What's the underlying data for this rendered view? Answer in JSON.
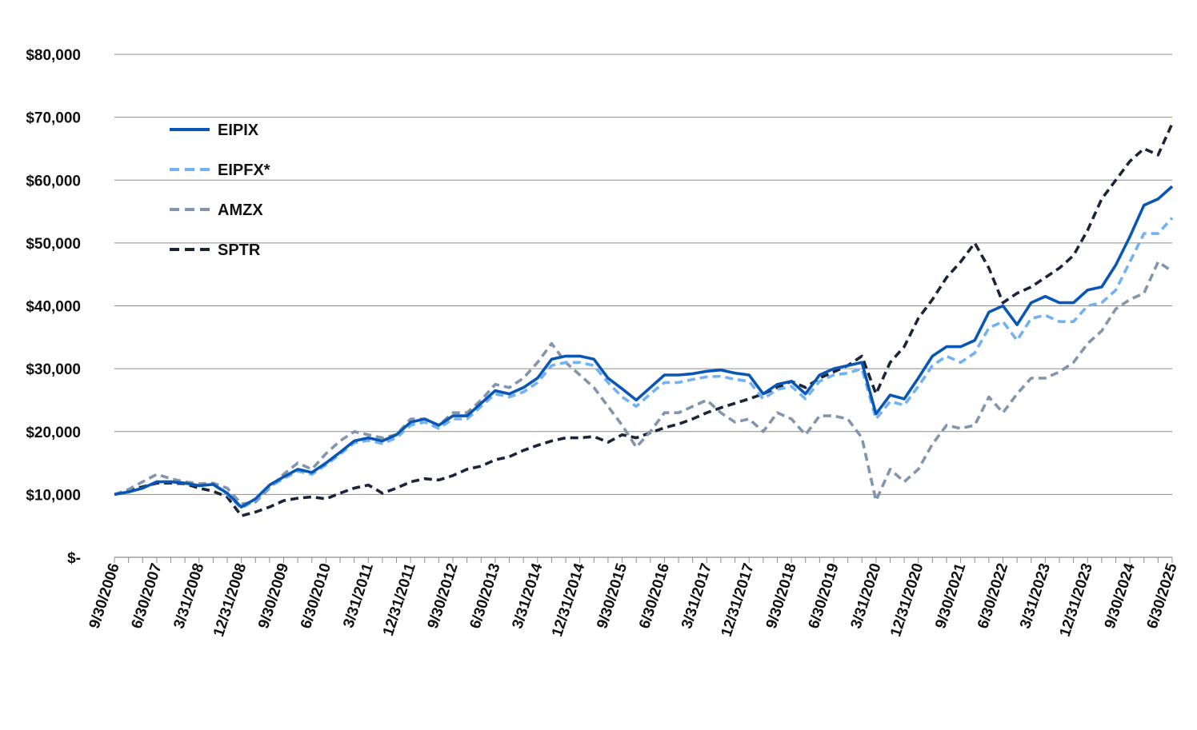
{
  "chart_data": {
    "type": "line",
    "title": "",
    "xlabel": "",
    "ylabel": "",
    "ylim": [
      0,
      80000
    ],
    "y_ticks": [
      {
        "value": 0,
        "label": "$-"
      },
      {
        "value": 10000,
        "label": "$10,000"
      },
      {
        "value": 20000,
        "label": "$20,000"
      },
      {
        "value": 30000,
        "label": "$30,000"
      },
      {
        "value": 40000,
        "label": "$40,000"
      },
      {
        "value": 50000,
        "label": "$50,000"
      },
      {
        "value": 60000,
        "label": "$60,000"
      },
      {
        "value": 70000,
        "label": "$70,000"
      },
      {
        "value": 80000,
        "label": "$80,000"
      }
    ],
    "x_tick_labels": [
      "9/30/2006",
      "6/30/2007",
      "3/31/2008",
      "12/31/2008",
      "9/30/2009",
      "6/30/2010",
      "3/31/2011",
      "12/31/2011",
      "9/30/2012",
      "6/30/2013",
      "3/31/2014",
      "12/31/2014",
      "9/30/2015",
      "6/30/2016",
      "3/31/2017",
      "12/31/2017",
      "9/30/2018",
      "6/30/2019",
      "3/31/2020",
      "12/31/2020",
      "9/30/2021",
      "6/30/2022",
      "3/31/2023",
      "12/31/2023",
      "9/30/2024",
      "6/30/2025"
    ],
    "grid": "horizontal",
    "legend": "upper-left",
    "colors": {
      "EIPIX": "#0a56b5",
      "EIPFX*": "#72b2f2",
      "AMZX": "#8196ad",
      "SPTR": "#1b2438"
    },
    "x_unit": "quarter-end date (2006-09-30 to 2025-06-30)",
    "x": [
      "2006-09-30",
      "2006-12-31",
      "2007-03-31",
      "2007-06-30",
      "2007-09-30",
      "2007-12-31",
      "2008-03-31",
      "2008-06-30",
      "2008-09-30",
      "2008-12-31",
      "2009-03-31",
      "2009-06-30",
      "2009-09-30",
      "2009-12-31",
      "2010-03-31",
      "2010-06-30",
      "2010-09-30",
      "2010-12-31",
      "2011-03-31",
      "2011-06-30",
      "2011-09-30",
      "2011-12-31",
      "2012-03-31",
      "2012-06-30",
      "2012-09-30",
      "2012-12-31",
      "2013-03-31",
      "2013-06-30",
      "2013-09-30",
      "2013-12-31",
      "2014-03-31",
      "2014-06-30",
      "2014-09-30",
      "2014-12-31",
      "2015-03-31",
      "2015-06-30",
      "2015-09-30",
      "2015-12-31",
      "2016-03-31",
      "2016-06-30",
      "2016-09-30",
      "2016-12-31",
      "2017-03-31",
      "2017-06-30",
      "2017-09-30",
      "2017-12-31",
      "2018-03-31",
      "2018-06-30",
      "2018-09-30",
      "2018-12-31",
      "2019-03-31",
      "2019-06-30",
      "2019-09-30",
      "2019-12-31",
      "2020-03-31",
      "2020-06-30",
      "2020-09-30",
      "2020-12-31",
      "2021-03-31",
      "2021-06-30",
      "2021-09-30",
      "2021-12-31",
      "2022-03-31",
      "2022-06-30",
      "2022-09-30",
      "2022-12-31",
      "2023-03-31",
      "2023-06-30",
      "2023-09-30",
      "2023-12-31",
      "2024-03-31",
      "2024-06-30",
      "2024-09-30",
      "2024-12-31",
      "2025-03-31",
      "2025-06-30"
    ],
    "series": [
      {
        "name": "EIPIX",
        "style": "solid",
        "values": [
          10000,
          10400,
          11000,
          12000,
          12000,
          11800,
          11400,
          11600,
          10200,
          8000,
          9300,
          11500,
          12800,
          14000,
          13500,
          15000,
          16700,
          18500,
          19000,
          18500,
          19500,
          21500,
          22000,
          21000,
          22500,
          22500,
          24500,
          26500,
          26000,
          27000,
          28500,
          31500,
          32000,
          32000,
          31500,
          28500,
          26800,
          25000,
          27000,
          29000,
          29000,
          29200,
          29600,
          29800,
          29300,
          29000,
          26000,
          27500,
          28000,
          26000,
          29000,
          30000,
          30500,
          31000,
          22800,
          25800,
          25200,
          28500,
          32000,
          33500,
          33500,
          34500,
          39000,
          40000,
          37000,
          40500,
          41500,
          40500,
          40500,
          42500,
          43000,
          46500,
          51000,
          56000,
          57000,
          59000
        ]
      },
      {
        "name": "EIPFX*",
        "style": "dashed",
        "values": [
          10000,
          10400,
          11000,
          12000,
          12000,
          11800,
          11400,
          11600,
          10000,
          7800,
          9100,
          11200,
          12500,
          13700,
          13200,
          14700,
          16400,
          18200,
          18600,
          18100,
          19000,
          21000,
          21500,
          20500,
          22000,
          22000,
          24000,
          26000,
          25500,
          26300,
          27800,
          30500,
          31000,
          31000,
          30500,
          27800,
          25500,
          24000,
          26000,
          27800,
          27800,
          28300,
          28700,
          28800,
          28300,
          28000,
          25200,
          26700,
          27200,
          25200,
          28000,
          29000,
          29300,
          30000,
          22000,
          24800,
          24200,
          27200,
          30500,
          32000,
          31000,
          32500,
          36500,
          37500,
          34500,
          38000,
          38500,
          37500,
          37500,
          40000,
          40500,
          42500,
          47000,
          51500,
          51500,
          54000
        ]
      },
      {
        "name": "AMZX",
        "style": "dashed",
        "values": [
          10000,
          10800,
          12000,
          13200,
          12500,
          12000,
          11700,
          11800,
          11000,
          8500,
          8800,
          11000,
          13200,
          15000,
          14000,
          16500,
          18500,
          20000,
          19500,
          19000,
          19500,
          22000,
          22000,
          21000,
          23000,
          23000,
          25000,
          27500,
          27000,
          28500,
          31000,
          34000,
          31000,
          29000,
          27000,
          24000,
          21000,
          17500,
          20000,
          23000,
          23000,
          24000,
          25000,
          23000,
          21500,
          22000,
          20000,
          23000,
          22000,
          19500,
          22500,
          22500,
          22000,
          19000,
          9000,
          14000,
          12000,
          14000,
          18000,
          21000,
          20500,
          21000,
          25500,
          23000,
          26000,
          28500,
          28500,
          29500,
          31000,
          34000,
          36000,
          39500,
          41000,
          42000,
          47000,
          45500
        ]
      },
      {
        "name": "SPTR",
        "style": "dashed",
        "values": [
          10000,
          10700,
          11200,
          11800,
          11800,
          11700,
          11000,
          10500,
          9600,
          6600,
          7200,
          8000,
          9000,
          9400,
          9600,
          9300,
          10200,
          11000,
          11500,
          10200,
          11000,
          12000,
          12500,
          12300,
          13000,
          14000,
          14500,
          15500,
          16000,
          17000,
          17800,
          18500,
          19000,
          19000,
          19200,
          18300,
          19500,
          19000,
          19800,
          20600,
          21200,
          22000,
          23000,
          23800,
          24500,
          25200,
          26000,
          27000,
          28000,
          27000,
          28500,
          29500,
          30500,
          32000,
          26000,
          31000,
          33500,
          38000,
          41000,
          44500,
          47000,
          50000,
          46000,
          40500,
          42000,
          43000,
          44500,
          46000,
          48000,
          52000,
          57000,
          60000,
          63000,
          65000,
          64000,
          69000
        ]
      }
    ]
  }
}
